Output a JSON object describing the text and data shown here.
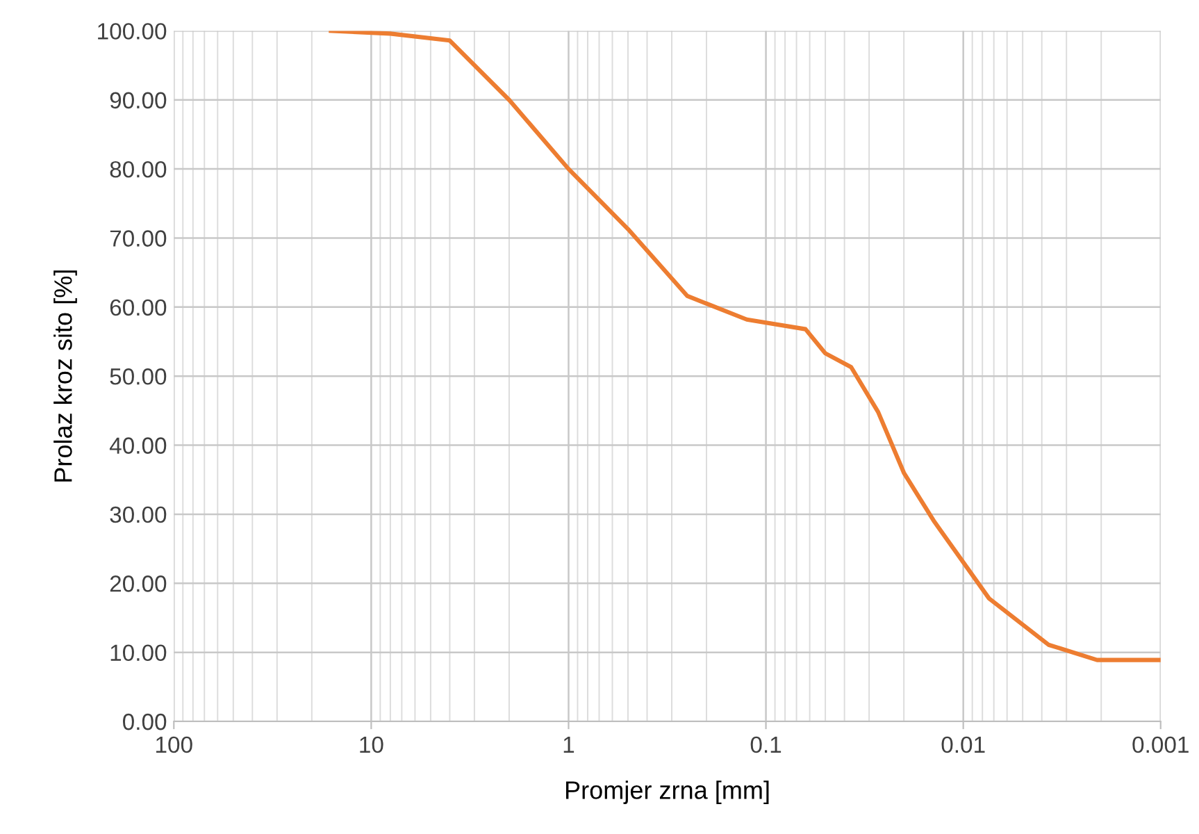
{
  "chart_data": {
    "type": "line",
    "xlabel": "Promjer zrna [mm]",
    "ylabel": "Prolaz kroz sito [%]",
    "log": "x",
    "grid": true,
    "marker": "none",
    "line_style": "solid",
    "xlim": [
      100,
      0.001
    ],
    "xticks": [
      100,
      10,
      1,
      0.1,
      0.01,
      0.001
    ],
    "ylim": [
      0,
      100
    ],
    "yticks": [
      {
        "value": 0,
        "label": "0.00"
      },
      {
        "value": 10,
        "label": "10.00"
      },
      {
        "value": 20,
        "label": "20.00"
      },
      {
        "value": 30,
        "label": "30.00"
      },
      {
        "value": 40,
        "label": "40.00"
      },
      {
        "value": 50,
        "label": "50.00"
      },
      {
        "value": 60,
        "label": "60.00"
      },
      {
        "value": 70,
        "label": "70.00"
      },
      {
        "value": 80,
        "label": "80.00"
      },
      {
        "value": 90,
        "label": "90.00"
      },
      {
        "value": 100,
        "label": "100.00"
      }
    ],
    "x": [
      16,
      8,
      4,
      2,
      1,
      0.5,
      0.25,
      0.125,
      0.063,
      0.05,
      0.037,
      0.027,
      0.02,
      0.014,
      0.0074,
      0.0037,
      0.0021,
      0.001
    ],
    "series": [
      {
        "color": "#ed7d31",
        "values": [
          100,
          99.6,
          98.6,
          90,
          80,
          71.3,
          61.6,
          58.2,
          56.8,
          53.3,
          51.3,
          44.8,
          36,
          28.9,
          17.8,
          11.1,
          8.9,
          8.9
        ]
      }
    ]
  }
}
